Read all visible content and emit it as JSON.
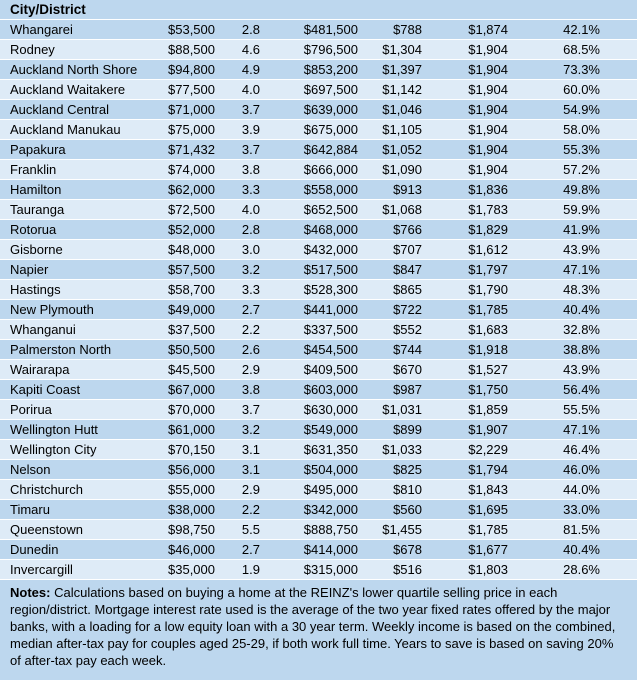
{
  "colors": {
    "row_dark": "#bdd7ee",
    "row_light": "#deebf7",
    "separator": "#ffffff",
    "text": "#000000"
  },
  "chart_data": {
    "type": "table",
    "title": "",
    "columns": [
      "City/District",
      "",
      "",
      "",
      "",
      "",
      ""
    ],
    "rows": [
      [
        "Whangarei",
        "$53,500",
        "2.8",
        "$481,500",
        "$788",
        "$1,874",
        "42.1%"
      ],
      [
        "Rodney",
        "$88,500",
        "4.6",
        "$796,500",
        "$1,304",
        "$1,904",
        "68.5%"
      ],
      [
        "Auckland North Shore",
        "$94,800",
        "4.9",
        "$853,200",
        "$1,397",
        "$1,904",
        "73.3%"
      ],
      [
        "Auckland Waitakere",
        "$77,500",
        "4.0",
        "$697,500",
        "$1,142",
        "$1,904",
        "60.0%"
      ],
      [
        "Auckland Central",
        "$71,000",
        "3.7",
        "$639,000",
        "$1,046",
        "$1,904",
        "54.9%"
      ],
      [
        "Auckland Manukau",
        "$75,000",
        "3.9",
        "$675,000",
        "$1,105",
        "$1,904",
        "58.0%"
      ],
      [
        "Papakura",
        "$71,432",
        "3.7",
        "$642,884",
        "$1,052",
        "$1,904",
        "55.3%"
      ],
      [
        "Franklin",
        "$74,000",
        "3.8",
        "$666,000",
        "$1,090",
        "$1,904",
        "57.2%"
      ],
      [
        "Hamilton",
        "$62,000",
        "3.3",
        "$558,000",
        "$913",
        "$1,836",
        "49.8%"
      ],
      [
        "Tauranga",
        "$72,500",
        "4.0",
        "$652,500",
        "$1,068",
        "$1,783",
        "59.9%"
      ],
      [
        "Rotorua",
        "$52,000",
        "2.8",
        "$468,000",
        "$766",
        "$1,829",
        "41.9%"
      ],
      [
        "Gisborne",
        "$48,000",
        "3.0",
        "$432,000",
        "$707",
        "$1,612",
        "43.9%"
      ],
      [
        "Napier",
        "$57,500",
        "3.2",
        "$517,500",
        "$847",
        "$1,797",
        "47.1%"
      ],
      [
        "Hastings",
        "$58,700",
        "3.3",
        "$528,300",
        "$865",
        "$1,790",
        "48.3%"
      ],
      [
        "New Plymouth",
        "$49,000",
        "2.7",
        "$441,000",
        "$722",
        "$1,785",
        "40.4%"
      ],
      [
        "Whanganui",
        "$37,500",
        "2.2",
        "$337,500",
        "$552",
        "$1,683",
        "32.8%"
      ],
      [
        "Palmerston North",
        "$50,500",
        "2.6",
        "$454,500",
        "$744",
        "$1,918",
        "38.8%"
      ],
      [
        "Wairarapa",
        "$45,500",
        "2.9",
        "$409,500",
        "$670",
        "$1,527",
        "43.9%"
      ],
      [
        "Kapiti Coast",
        "$67,000",
        "3.8",
        "$603,000",
        "$987",
        "$1,750",
        "56.4%"
      ],
      [
        "Porirua",
        "$70,000",
        "3.7",
        "$630,000",
        "$1,031",
        "$1,859",
        "55.5%"
      ],
      [
        "Wellington Hutt",
        "$61,000",
        "3.2",
        "$549,000",
        "$899",
        "$1,907",
        "47.1%"
      ],
      [
        "Wellington City",
        "$70,150",
        "3.1",
        "$631,350",
        "$1,033",
        "$2,229",
        "46.4%"
      ],
      [
        "Nelson",
        "$56,000",
        "3.1",
        "$504,000",
        "$825",
        "$1,794",
        "46.0%"
      ],
      [
        "Christchurch",
        "$55,000",
        "2.9",
        "$495,000",
        "$810",
        "$1,843",
        "44.0%"
      ],
      [
        "Timaru",
        "$38,000",
        "2.2",
        "$342,000",
        "$560",
        "$1,695",
        "33.0%"
      ],
      [
        "Queenstown",
        "$98,750",
        "5.5",
        "$888,750",
        "$1,455",
        "$1,785",
        "81.5%"
      ],
      [
        "Dunedin",
        "$46,000",
        "2.7",
        "$414,000",
        "$678",
        "$1,677",
        "40.4%"
      ],
      [
        "Invercargill",
        "$35,000",
        "1.9",
        "$315,000",
        "$516",
        "$1,803",
        "28.6%"
      ]
    ]
  },
  "notes": {
    "label": "Notes:",
    "text": "Calculations based on buying a home at the REINZ's lower quartile selling price in each region/district. Mortgage interest rate used is the average of the two year fixed rates offered by the major banks, with a loading for a low equity loan with a 30 year term. Weekly income is based on the combined, median after-tax pay for couples aged 25-29, if both work full time. Years to save is based on saving 20% of after-tax pay each week."
  }
}
